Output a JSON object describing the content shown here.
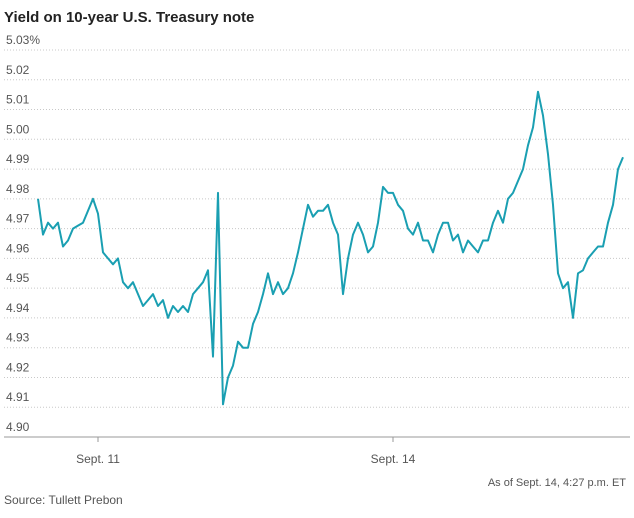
{
  "chart_data": {
    "type": "line",
    "title": "Yield on 10-year U.S. Treasury note",
    "note": "As of Sept. 14, 4:27 p.m. ET",
    "source": "Source: Tullett Prebon",
    "categories": [
      null,
      null,
      null,
      null,
      null,
      null,
      null,
      null,
      null,
      null,
      null,
      null,
      "Sept. 11",
      null,
      null,
      null,
      null,
      null,
      null,
      null,
      null,
      null,
      null,
      null,
      null,
      null,
      null,
      null,
      null,
      null,
      null,
      null,
      null,
      null,
      null,
      null,
      null,
      null,
      null,
      null,
      null,
      null,
      null,
      null,
      null,
      null,
      null,
      null,
      null,
      null,
      null,
      null,
      null,
      null,
      null,
      null,
      null,
      null,
      null,
      null,
      null,
      null,
      null,
      null,
      null,
      null,
      null,
      null,
      null,
      null,
      null,
      "Sept. 14",
      null,
      null,
      null,
      null,
      null,
      null,
      null,
      null,
      null,
      null,
      null,
      null,
      null,
      null,
      null,
      null,
      null,
      null,
      null,
      null,
      null,
      null,
      null,
      null,
      null,
      null,
      null,
      null,
      null,
      null,
      null,
      null,
      null,
      null,
      null,
      null,
      null,
      null,
      null,
      null,
      null,
      null,
      null,
      null,
      null,
      null
    ],
    "series": [
      {
        "name": "10-year yield",
        "color": "#1a9fb2",
        "values": [
          4.98,
          4.968,
          4.972,
          4.97,
          4.972,
          4.964,
          4.966,
          4.97,
          4.971,
          4.972,
          4.976,
          4.98,
          4.975,
          4.962,
          4.96,
          4.958,
          4.96,
          4.952,
          4.95,
          4.952,
          4.948,
          4.944,
          4.946,
          4.948,
          4.944,
          4.946,
          4.94,
          4.944,
          4.942,
          4.944,
          4.942,
          4.948,
          4.95,
          4.952,
          4.956,
          4.927,
          4.982,
          4.911,
          4.92,
          4.924,
          4.932,
          4.93,
          4.93,
          4.938,
          4.942,
          4.948,
          4.955,
          4.948,
          4.952,
          4.948,
          4.95,
          4.955,
          4.962,
          4.97,
          4.978,
          4.974,
          4.976,
          4.976,
          4.978,
          4.972,
          4.968,
          4.948,
          4.96,
          4.968,
          4.972,
          4.968,
          4.962,
          4.964,
          4.972,
          4.984,
          4.982,
          4.982,
          4.978,
          4.976,
          4.97,
          4.968,
          4.972,
          4.966,
          4.966,
          4.962,
          4.968,
          4.972,
          4.972,
          4.966,
          4.968,
          4.962,
          4.966,
          4.964,
          4.962,
          4.966,
          4.966,
          4.972,
          4.976,
          4.972,
          4.98,
          4.982,
          4.986,
          4.99,
          4.998,
          5.004,
          5.016,
          5.008,
          4.995,
          4.978,
          4.955,
          4.95,
          4.952,
          4.94,
          4.955,
          4.956,
          4.96,
          4.962,
          4.964,
          4.964,
          4.972,
          4.978,
          4.99,
          4.994
        ]
      }
    ],
    "ylim": [
      4.9,
      5.03
    ],
    "yticks": [
      {
        "value": 4.9,
        "label": "4.90"
      },
      4.91,
      4.92,
      4.93,
      4.94,
      4.95,
      4.96,
      4.97,
      4.98,
      4.99,
      {
        "value": 5,
        "label": "5.00"
      },
      5.01,
      5.02,
      {
        "value": 5.03,
        "label": "5.03%"
      }
    ],
    "grid": true
  }
}
